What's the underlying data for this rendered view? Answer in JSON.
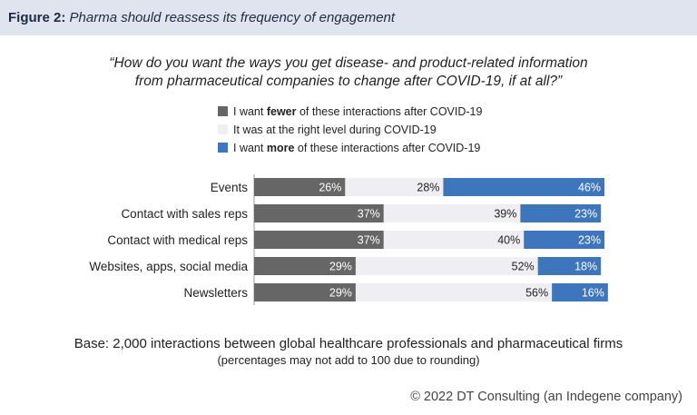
{
  "header": {
    "figure_label": "Figure 2:",
    "figure_text": "Pharma should reassess its frequency of engagement"
  },
  "question": {
    "line1": "“How do you want the ways you get disease- and product-related information",
    "line2": "from pharmaceutical companies to change after COVID-19, if at all?”"
  },
  "legend": {
    "fewer": {
      "prefix": "I want ",
      "bold": "fewer",
      "suffix": " of these interactions after COVID-19",
      "color": "#666666"
    },
    "same": {
      "text": "It was at the right level during COVID-19",
      "color": "#efeff3"
    },
    "more": {
      "prefix": "I want ",
      "bold": "more",
      "suffix": " of these interactions after COVID-19",
      "color": "#3d76bd"
    }
  },
  "chart_data": {
    "type": "bar",
    "orientation": "horizontal",
    "stacked": true,
    "categories": [
      "Events",
      "Contact with sales reps",
      "Contact with medical reps",
      "Websites, apps, social media",
      "Newsletters"
    ],
    "series": [
      {
        "name": "I want fewer of these interactions after COVID-19",
        "color": "#666666",
        "values": [
          26,
          37,
          37,
          29,
          29
        ]
      },
      {
        "name": "It was at the right level during COVID-19",
        "color": "#efeff3",
        "values": [
          28,
          39,
          40,
          52,
          56
        ]
      },
      {
        "name": "I want more of these interactions after COVID-19",
        "color": "#3d76bd",
        "values": [
          46,
          23,
          23,
          18,
          16
        ]
      }
    ],
    "value_suffix": "%",
    "xlim": [
      0,
      100
    ]
  },
  "footer": {
    "base": "Base: 2,000 interactions between global healthcare professionals and pharmaceutical firms",
    "note": "(percentages may not add to 100 due to rounding)",
    "copyright": "© 2022 DT Consulting (an Indegene company)"
  }
}
